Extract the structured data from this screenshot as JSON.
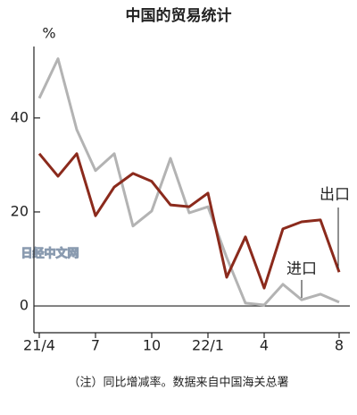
{
  "chart_data": {
    "type": "line",
    "title": "中国的贸易统计",
    "y_label": "%",
    "categories": [
      "21/4",
      null,
      null,
      "7",
      null,
      null,
      "10",
      null,
      null,
      "22/1",
      null,
      null,
      "4",
      null,
      null,
      null,
      "8"
    ],
    "series": [
      {
        "name": "出口",
        "color": "#8b2a1c",
        "values": [
          32.4,
          27.6,
          32.4,
          19.2,
          25.3,
          28.2,
          26.5,
          21.5,
          21.1,
          24.0,
          6.1,
          14.7,
          3.8,
          16.4,
          17.9,
          18.3,
          7.2
        ]
      },
      {
        "name": "进口",
        "color": "#b3b3b3",
        "values": [
          44.2,
          52.6,
          37.5,
          28.8,
          32.4,
          17.0,
          20.2,
          31.4,
          19.8,
          21.1,
          10.3,
          0.6,
          0.2,
          4.6,
          1.3,
          2.5,
          0.8
        ]
      }
    ],
    "ylim": [
      -5.7,
      55.2
    ],
    "yticks": [
      40,
      20,
      0
    ],
    "watermark": "日经中文网",
    "note": "（注）同比增减率。数据来自中国海关总署"
  }
}
